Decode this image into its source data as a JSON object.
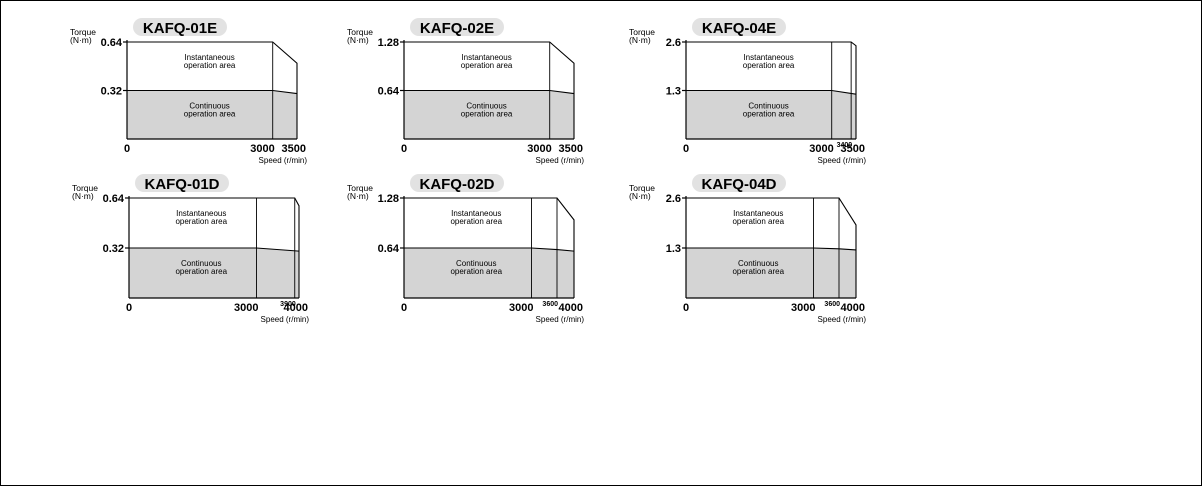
{
  "chart_data": [
    {
      "type": "area",
      "title": "KAFQ-01E",
      "ylabel_lines": [
        "Torque",
        "(N·m)"
      ],
      "xlabel": "Speed (r/min)",
      "y_ticks": [
        "0.64",
        "0.32"
      ],
      "x_tick_labels": [
        "0",
        "3000",
        "3500"
      ],
      "xlim": [
        0,
        3500
      ],
      "ylim": [
        0,
        0.64
      ],
      "instantaneous": {
        "x": [
          0,
          3000,
          3500
        ],
        "y": [
          0.64,
          0.64,
          0.5
        ]
      },
      "continuous": {
        "x": [
          0,
          3000,
          3500
        ],
        "y": [
          0.32,
          0.32,
          0.3
        ]
      },
      "area_labels": {
        "instantaneous": [
          "Instantaneous",
          "operation area"
        ],
        "continuous": [
          "Continuous",
          "operation area"
        ]
      }
    },
    {
      "type": "area",
      "title": "KAFQ-02E",
      "ylabel_lines": [
        "Torque",
        "(N·m)"
      ],
      "xlabel": "Speed (r/min)",
      "y_ticks": [
        "1.28",
        "0.64"
      ],
      "x_tick_labels": [
        "0",
        "3000",
        "3500"
      ],
      "xlim": [
        0,
        3500
      ],
      "ylim": [
        0,
        1.28
      ],
      "instantaneous": {
        "x": [
          0,
          3000,
          3500
        ],
        "y": [
          1.28,
          1.28,
          1.0
        ]
      },
      "continuous": {
        "x": [
          0,
          3000,
          3500
        ],
        "y": [
          0.64,
          0.64,
          0.6
        ]
      },
      "area_labels": {
        "instantaneous": [
          "Instantaneous",
          "operation area"
        ],
        "continuous": [
          "Continuous",
          "operation area"
        ]
      }
    },
    {
      "type": "area",
      "title": "KAFQ-04E",
      "ylabel_lines": [
        "Torque",
        "(N·m)"
      ],
      "xlabel": "Speed (r/min)",
      "y_ticks": [
        "2.6",
        "1.3"
      ],
      "x_tick_labels": [
        "0",
        "3000",
        "3400",
        "3500"
      ],
      "xlim": [
        0,
        3500
      ],
      "ylim": [
        0,
        2.6
      ],
      "instantaneous": {
        "x": [
          0,
          3000,
          3400,
          3500
        ],
        "y": [
          2.6,
          2.6,
          2.6,
          2.5
        ]
      },
      "continuous": {
        "x": [
          0,
          3000,
          3500
        ],
        "y": [
          1.3,
          1.3,
          1.2
        ]
      },
      "area_labels": {
        "instantaneous": [
          "Instantaneous",
          "operation area"
        ],
        "continuous": [
          "Continuous",
          "operation area"
        ]
      }
    },
    {
      "type": "area",
      "title": "KAFQ-01D",
      "ylabel_lines": [
        "Torque",
        "(N·m)"
      ],
      "xlabel": "Speed (r/min)",
      "y_ticks": [
        "0.64",
        "0.32"
      ],
      "x_tick_labels": [
        "0",
        "3000",
        "3900",
        "4000"
      ],
      "xlim": [
        0,
        4000
      ],
      "ylim": [
        0,
        0.64
      ],
      "instantaneous": {
        "x": [
          0,
          3000,
          3900,
          4000
        ],
        "y": [
          0.64,
          0.64,
          0.64,
          0.59
        ]
      },
      "continuous": {
        "x": [
          0,
          3000,
          4000
        ],
        "y": [
          0.32,
          0.32,
          0.3
        ]
      },
      "area_labels": {
        "instantaneous": [
          "Instantaneous",
          "operation area"
        ],
        "continuous": [
          "Continuous",
          "operation area"
        ]
      }
    },
    {
      "type": "area",
      "title": "KAFQ-02D",
      "ylabel_lines": [
        "Torque",
        "(N·m)"
      ],
      "xlabel": "Speed (r/min)",
      "y_ticks": [
        "1.28",
        "0.64"
      ],
      "x_tick_labels": [
        "0",
        "3000",
        "3600",
        "4000"
      ],
      "xlim": [
        0,
        4000
      ],
      "ylim": [
        0,
        1.28
      ],
      "instantaneous": {
        "x": [
          0,
          3000,
          3600,
          4000
        ],
        "y": [
          1.28,
          1.28,
          1.28,
          1.0
        ]
      },
      "continuous": {
        "x": [
          0,
          3000,
          3600,
          4000
        ],
        "y": [
          0.64,
          0.64,
          0.62,
          0.6
        ]
      },
      "area_labels": {
        "instantaneous": [
          "Instantaneous",
          "operation area"
        ],
        "continuous": [
          "Continuous",
          "operation area"
        ]
      }
    },
    {
      "type": "area",
      "title": "KAFQ-04D",
      "ylabel_lines": [
        "Torque",
        "(N·m)"
      ],
      "xlabel": "Speed (r/min)",
      "y_ticks": [
        "2.6",
        "1.3"
      ],
      "x_tick_labels": [
        "0",
        "3000",
        "3600",
        "4000"
      ],
      "xlim": [
        0,
        4000
      ],
      "ylim": [
        0,
        2.6
      ],
      "instantaneous": {
        "x": [
          0,
          3000,
          3600,
          4000
        ],
        "y": [
          2.6,
          2.6,
          2.6,
          1.9
        ]
      },
      "continuous": {
        "x": [
          0,
          3000,
          3600,
          4000
        ],
        "y": [
          1.3,
          1.3,
          1.28,
          1.25
        ]
      },
      "area_labels": {
        "instantaneous": [
          "Instantaneous",
          "operation area"
        ],
        "continuous": [
          "Continuous",
          "operation area"
        ]
      }
    }
  ]
}
